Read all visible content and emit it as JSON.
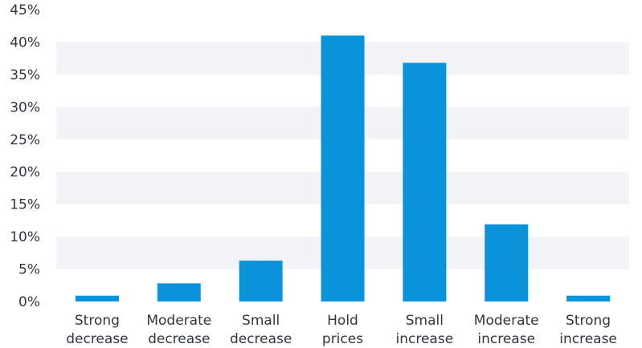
{
  "chart_data": {
    "type": "bar",
    "title": "",
    "xlabel": "",
    "ylabel": "",
    "categories": [
      [
        "Strong",
        "decrease"
      ],
      [
        "Moderate",
        "decrease"
      ],
      [
        "Small",
        "decrease"
      ],
      [
        "Hold",
        "prices"
      ],
      [
        "Small",
        "increase"
      ],
      [
        "Moderate",
        "increase"
      ],
      [
        "Strong",
        "increase"
      ]
    ],
    "series": [
      {
        "values": [
          0.9,
          2.8,
          6.3,
          41.0,
          36.8,
          11.9,
          0.9
        ]
      }
    ],
    "ylim": [
      0,
      45
    ],
    "yticks": [
      "0%",
      "5%",
      "10%",
      "15%",
      "20%",
      "25%",
      "30%",
      "35%",
      "40%",
      "45%"
    ],
    "grid": "horizontal alternating bands",
    "legend": "none",
    "colors": {
      "bar": "#0a93d8",
      "band": "#f1f3f6",
      "text": "#2f3640"
    }
  }
}
